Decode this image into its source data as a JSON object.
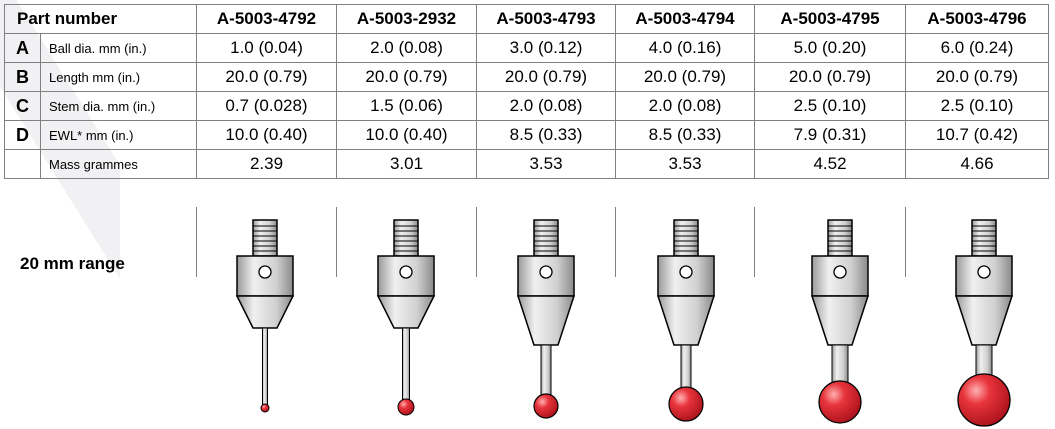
{
  "table": {
    "header_label": "Part number",
    "part_numbers": [
      "A-5003-4792",
      "A-5003-2932",
      "A-5003-4793",
      "A-5003-4794",
      "A-5003-4795",
      "A-5003-4796"
    ],
    "rows": [
      {
        "letter": "A",
        "property": "Ball dia. mm (in.)",
        "values": [
          "1.0 (0.04)",
          "2.0 (0.08)",
          "3.0 (0.12)",
          "4.0 (0.16)",
          "5.0 (0.20)",
          "6.0 (0.24)"
        ]
      },
      {
        "letter": "B",
        "property": "Length mm (in.)",
        "values": [
          "20.0 (0.79)",
          "20.0 (0.79)",
          "20.0 (0.79)",
          "20.0 (0.79)",
          "20.0 (0.79)",
          "20.0 (0.79)"
        ]
      },
      {
        "letter": "C",
        "property": "Stem dia. mm (in.)",
        "values": [
          "0.7 (0.028)",
          "1.5 (0.06)",
          "2.0 (0.08)",
          "2.0 (0.08)",
          "2.5 (0.10)",
          "2.5 (0.10)"
        ]
      },
      {
        "letter": "D",
        "property": "EWL* mm (in.)",
        "values": [
          "10.0 (0.40)",
          "10.0 (0.40)",
          "8.5 (0.33)",
          "8.5 (0.33)",
          "7.9 (0.31)",
          "10.7 (0.42)"
        ]
      },
      {
        "letter": "",
        "property": "Mass grammes",
        "values": [
          "2.39",
          "3.01",
          "3.53",
          "3.53",
          "4.52",
          "4.66"
        ]
      }
    ]
  },
  "range_label": "20 mm range",
  "colors": {
    "ball": "#e0232e",
    "ball_highlight": "#ff8a8a",
    "body": "#d9d9d9",
    "outline": "#000000",
    "grid": "#808080"
  }
}
